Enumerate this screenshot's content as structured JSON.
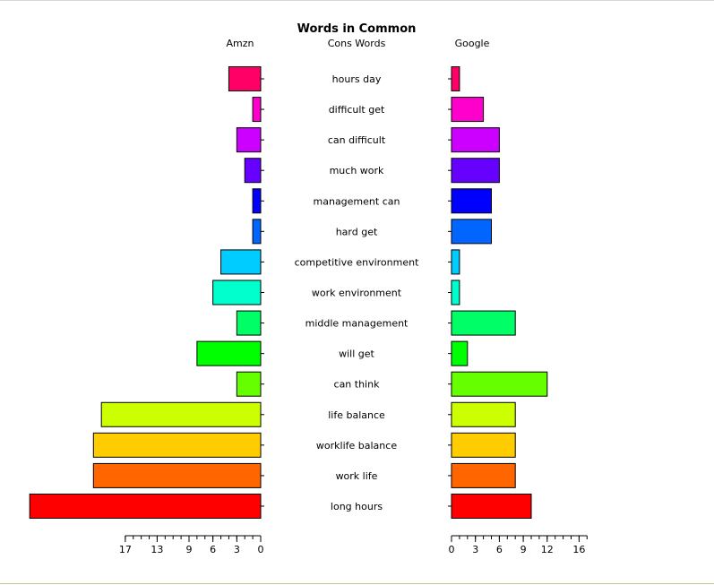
{
  "chart_data": {
    "type": "bar",
    "layout": "pyramid",
    "title": "Words in Common",
    "left_label": "Amzn",
    "center_label": "Cons Words",
    "right_label": "Google",
    "categories": [
      "hours day",
      "difficult get",
      "can difficult",
      "much work",
      "management can",
      "hard get",
      "competitive environment",
      "work environment",
      "middle management",
      "will get",
      "can think",
      "life balance",
      "worklife balance",
      "work life",
      "long hours"
    ],
    "colors": [
      "#FF0066",
      "#FF00CC",
      "#CC00FF",
      "#6600FF",
      "#0000FF",
      "#0066FF",
      "#00CCFF",
      "#00FFCC",
      "#00FF66",
      "#00FF00",
      "#66FF00",
      "#CCFF00",
      "#FFCC00",
      "#FF6600",
      "#FF0000"
    ],
    "series": [
      {
        "name": "Amzn",
        "values": [
          4,
          1,
          3,
          2,
          1,
          1,
          5,
          6,
          3,
          8,
          3,
          20,
          21,
          21,
          29
        ]
      },
      {
        "name": "Google",
        "values": [
          1,
          4,
          6,
          6,
          5,
          5,
          1,
          1,
          8,
          2,
          12,
          8,
          8,
          8,
          10
        ]
      }
    ],
    "left_axis": {
      "ticks": [
        17,
        13,
        9,
        6,
        3,
        0
      ],
      "minor_step": 1,
      "max": 17
    },
    "right_axis": {
      "ticks": [
        0,
        3,
        6,
        9,
        12,
        16
      ],
      "minor_step": 1,
      "max": 17
    }
  }
}
